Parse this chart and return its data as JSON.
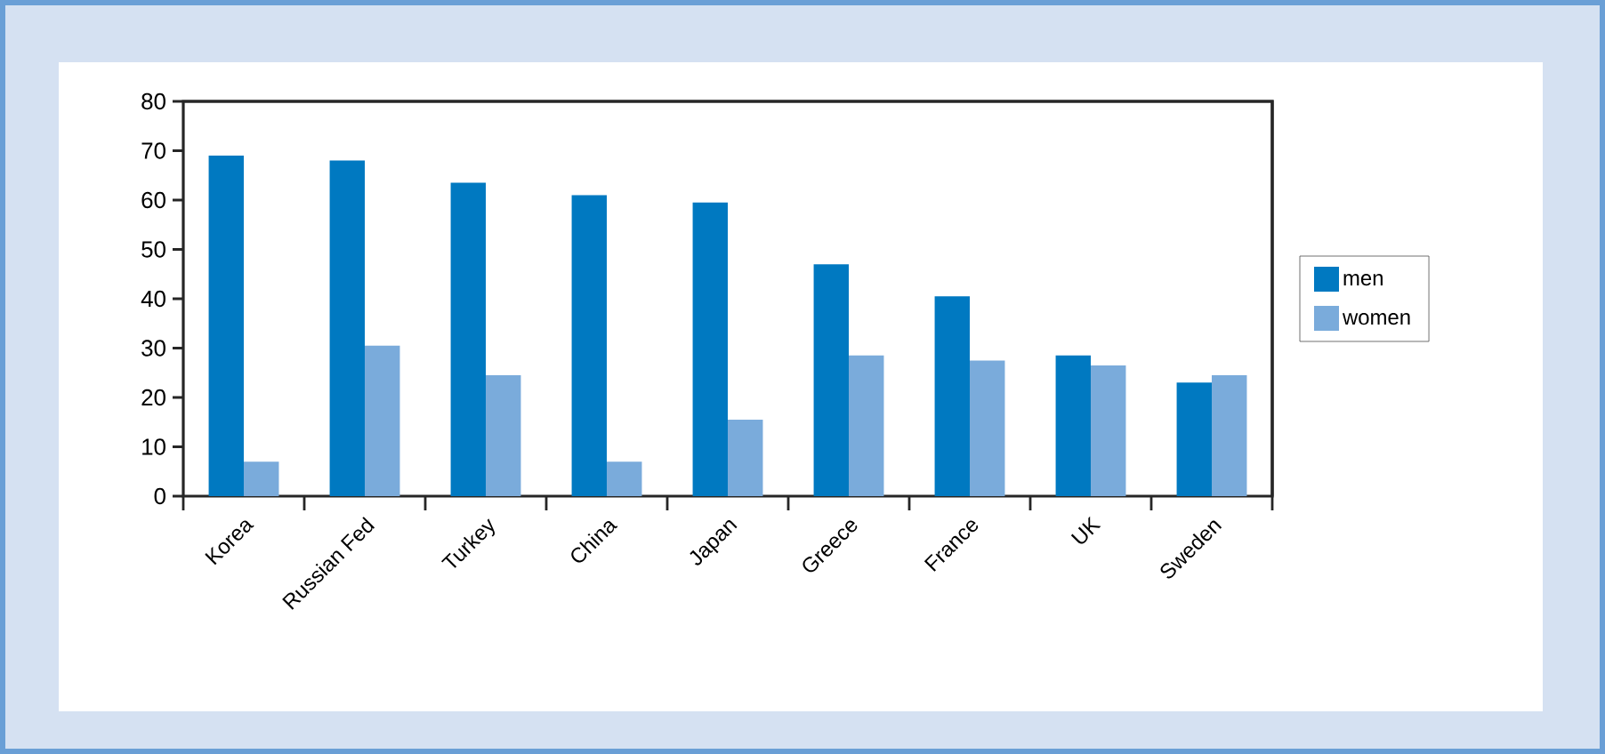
{
  "chart_data": {
    "type": "bar",
    "categories": [
      "Korea",
      "Russian Fed",
      "Turkey",
      "China",
      "Japan",
      "Greece",
      "France",
      "UK",
      "Sweden"
    ],
    "series": [
      {
        "name": "men",
        "color": "#0079c1",
        "values": [
          69,
          68,
          63.5,
          61,
          59.5,
          47,
          40.5,
          28.5,
          23
        ]
      },
      {
        "name": "women",
        "color": "#7aabdb",
        "values": [
          7,
          30.5,
          24.5,
          7,
          15.5,
          28.5,
          27.5,
          26.5,
          24.5
        ]
      }
    ],
    "ylim": [
      0,
      80
    ],
    "yticks": [
      0,
      10,
      20,
      30,
      40,
      50,
      60,
      70,
      80
    ],
    "legend": "right",
    "grid": false
  }
}
